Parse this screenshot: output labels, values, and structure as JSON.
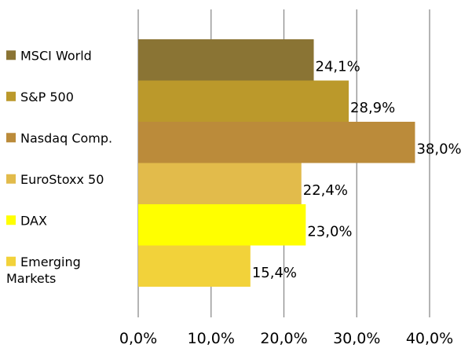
{
  "chart_data": {
    "type": "bar",
    "orientation": "horizontal",
    "title": "",
    "xlabel": "",
    "ylabel": "",
    "categories": [
      "MSCI World",
      "S&P 500",
      "Nasdaq Comp.",
      "EuroStoxx 50",
      "DAX",
      "Emerging Markets"
    ],
    "label_lines": [
      [
        "MSCI World"
      ],
      [
        "S&P 500"
      ],
      [
        "Nasdaq Comp."
      ],
      [
        "EuroStoxx 50"
      ],
      [
        "DAX"
      ],
      [
        "Emerging",
        "Markets"
      ]
    ],
    "values": [
      24.1,
      28.9,
      38.0,
      22.4,
      23.0,
      15.4
    ],
    "value_labels": [
      "24,1%",
      "28,9%",
      "38,0%",
      "22,4%",
      "23,0%",
      "15,4%"
    ],
    "colors": [
      "#8a7434",
      "#bb992b",
      "#bb8b3a",
      "#e2bb4b",
      "#ffff00",
      "#f2d23a"
    ],
    "xlim": [
      0,
      40
    ],
    "xticks": [
      0,
      10,
      20,
      30,
      40
    ],
    "xtick_labels": [
      "0,0%",
      "10,0%",
      "20,0%",
      "30,0%",
      "40,0%"
    ],
    "grid": true,
    "legend": "left"
  }
}
